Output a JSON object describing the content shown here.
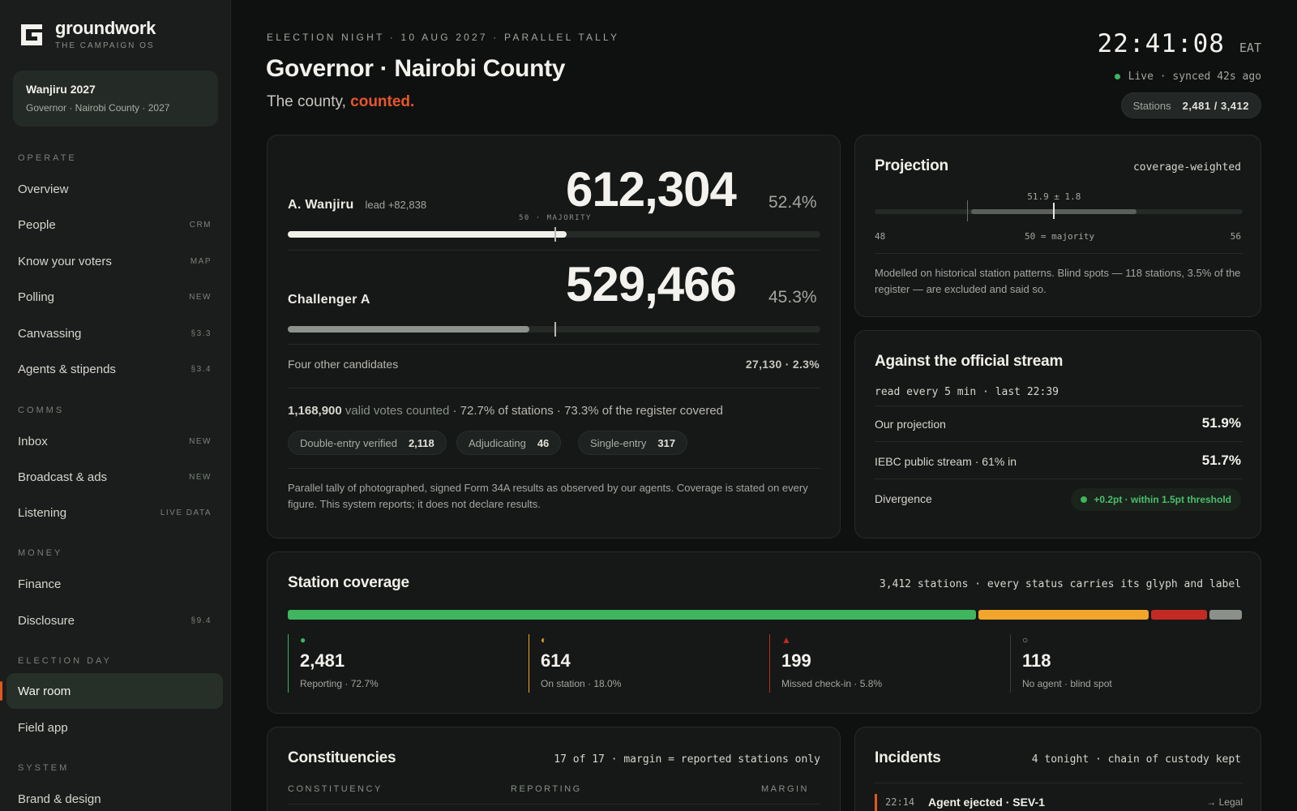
{
  "brand": {
    "name": "groundwork",
    "tagline": "THE CAMPAIGN OS"
  },
  "campaign": {
    "name": "Wanjiru 2027",
    "subtitle": "Governor · Nairobi County · 2027"
  },
  "nav": {
    "operate_label": "OPERATE",
    "comms_label": "COMMS",
    "money_label": "MONEY",
    "election_day_label": "ELECTION DAY",
    "system_label": "SYSTEM",
    "items": [
      {
        "label": "Overview",
        "tag": ""
      },
      {
        "label": "People",
        "tag": "CRM"
      },
      {
        "label": "Know your voters",
        "tag": "MAP"
      },
      {
        "label": "Polling",
        "tag": "NEW"
      },
      {
        "label": "Canvassing",
        "tag": "§3.3"
      },
      {
        "label": "Agents & stipends",
        "tag": "§3.4"
      },
      {
        "label": "Inbox",
        "tag": "NEW"
      },
      {
        "label": "Broadcast & ads",
        "tag": "NEW"
      },
      {
        "label": "Listening",
        "tag": "LIVE DATA"
      },
      {
        "label": "Finance",
        "tag": ""
      },
      {
        "label": "Disclosure",
        "tag": "§9.4"
      },
      {
        "label": "War room",
        "tag": ""
      },
      {
        "label": "Field app",
        "tag": ""
      },
      {
        "label": "Brand & design",
        "tag": ""
      }
    ]
  },
  "header": {
    "eyebrow": "ELECTION NIGHT · 10 AUG 2027 · PARALLEL TALLY",
    "title": "Governor · Nairobi County",
    "subtitle_prefix": "The county,",
    "subtitle_accent": "counted.",
    "clock": "22:41:08",
    "timezone": "EAT",
    "live_status": "Live · synced 42s ago",
    "stations_label": "Stations",
    "stations_value": "2,481 / 3,412"
  },
  "tally": {
    "majority_label": "50 · MAJORITY",
    "leader": {
      "name": "A. Wanjiru",
      "lead": "lead +82,838",
      "votes": "612,304",
      "pct": "52.4%",
      "share": 0.524
    },
    "challenger": {
      "name": "Challenger A",
      "votes": "529,466",
      "pct": "45.3%",
      "share": 0.453
    },
    "others": {
      "label": "Four other candidates",
      "value": "27,130 · 2.3%"
    },
    "valid_votes": "1,168,900",
    "valid_label": "valid votes counted",
    "coverage_text": "· 72.7% of stations · 73.3% of the register covered",
    "chips": [
      {
        "label": "Double-entry verified",
        "value": "2,118"
      },
      {
        "label": "Adjudicating",
        "value": "46"
      },
      {
        "label": "Single-entry",
        "value": "317"
      }
    ],
    "note": "Parallel tally of photographed, signed Form 34A results as observed by our agents. Coverage is stated on every figure. This system reports; it does not declare results."
  },
  "projection": {
    "title": "Projection",
    "method": "coverage-weighted",
    "estimate_label": "51.9 ± 1.8",
    "estimate": 51.9,
    "margin": 1.8,
    "axis_min": 48,
    "axis_max": 56,
    "axis_min_label": "48",
    "axis_mid_label": "50 = majority",
    "axis_max_label": "56",
    "note": "Modelled on historical station patterns. Blind spots — 118 stations, 3.5% of the register — are excluded and said so."
  },
  "official": {
    "title": "Against the official stream",
    "cadence": "read every 5 min · last 22:39",
    "rows": [
      {
        "label": "Our projection",
        "value": "51.9%"
      },
      {
        "label": "IEBC public stream · 61% in",
        "value": "51.7%"
      },
      {
        "label": "Divergence",
        "value": ""
      }
    ],
    "divergence_badge": "+0.2pt · within 1.5pt threshold"
  },
  "coverage": {
    "title": "Station coverage",
    "summary": "3,412 stations · every status carries its glyph and label",
    "segments": [
      {
        "count": 2481,
        "color": "#3fb55e"
      },
      {
        "count": 614,
        "color": "#f2a52b"
      },
      {
        "count": 199,
        "color": "#c42a24"
      },
      {
        "count": 118,
        "color": "#8c908b"
      }
    ],
    "stats": [
      {
        "glyph": "●",
        "color": "#3fb55e",
        "value": "2,481",
        "label": "Reporting · 72.7%",
        "border": "#3fb55e"
      },
      {
        "glyph": "◐",
        "color": "#f2a52b",
        "value": "614",
        "label": "On station · 18.0%",
        "border": "#f2a52b"
      },
      {
        "glyph": "▲",
        "color": "#c42a24",
        "value": "199",
        "label": "Missed check-in · 5.8%",
        "border": "#c42a24"
      },
      {
        "glyph": "○",
        "color": "#a3a6a0",
        "value": "118",
        "label": "No agent · blind spot",
        "border": "#3a3f3b"
      }
    ]
  },
  "constituencies": {
    "title": "Constituencies",
    "summary": "17 of 17 · margin = reported stations only",
    "columns": [
      "CONSTITUENCY",
      "REPORTING",
      "MARGIN"
    ]
  },
  "incidents": {
    "title": "Incidents",
    "summary": "4 tonight · chain of custody kept",
    "items": [
      {
        "time": "22:14",
        "text": "Agent ejected · SEV-1",
        "action": "→ Legal"
      }
    ]
  },
  "colors": {
    "accent": "#e8562a",
    "green": "#3fb55e",
    "amber": "#f2a52b",
    "red": "#c42a24"
  }
}
